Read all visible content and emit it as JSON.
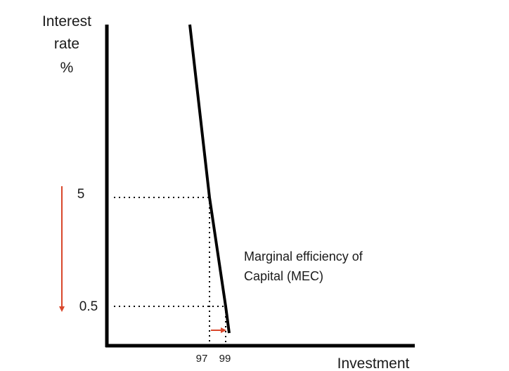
{
  "chart_data": {
    "type": "line",
    "ylabel": [
      "Interest",
      "rate",
      "%"
    ],
    "xlabel": "Investment",
    "y_ticks": [
      {
        "label": "5",
        "value": 5
      },
      {
        "label": "0.5",
        "value": 0.5
      }
    ],
    "x_ticks": [
      {
        "label": "97",
        "value": 97
      },
      {
        "label": "99",
        "value": 99
      }
    ],
    "series": [
      {
        "name": "Marginal efficiency of Capital (MEC)",
        "label_lines": [
          "Marginal efficiency of",
          "Capital (MEC)"
        ],
        "points": [
          {
            "x": 94.7,
            "y": 14
          },
          {
            "x": 97,
            "y": 5
          },
          {
            "x": 99,
            "y": 0.5
          },
          {
            "x": 99.3,
            "y": -0.5
          }
        ]
      }
    ],
    "guides": [
      {
        "x": 97,
        "y": 5
      },
      {
        "x": 99,
        "y": 0.5
      }
    ],
    "annotations": [
      {
        "type": "arrow",
        "direction": "down",
        "from_y": 5,
        "to_y": 0.5,
        "color": "#d9472b"
      },
      {
        "type": "arrow",
        "direction": "right",
        "from_x": 97,
        "to_x": 99,
        "color": "#d9472b"
      }
    ],
    "grid": false,
    "legend": "none"
  }
}
